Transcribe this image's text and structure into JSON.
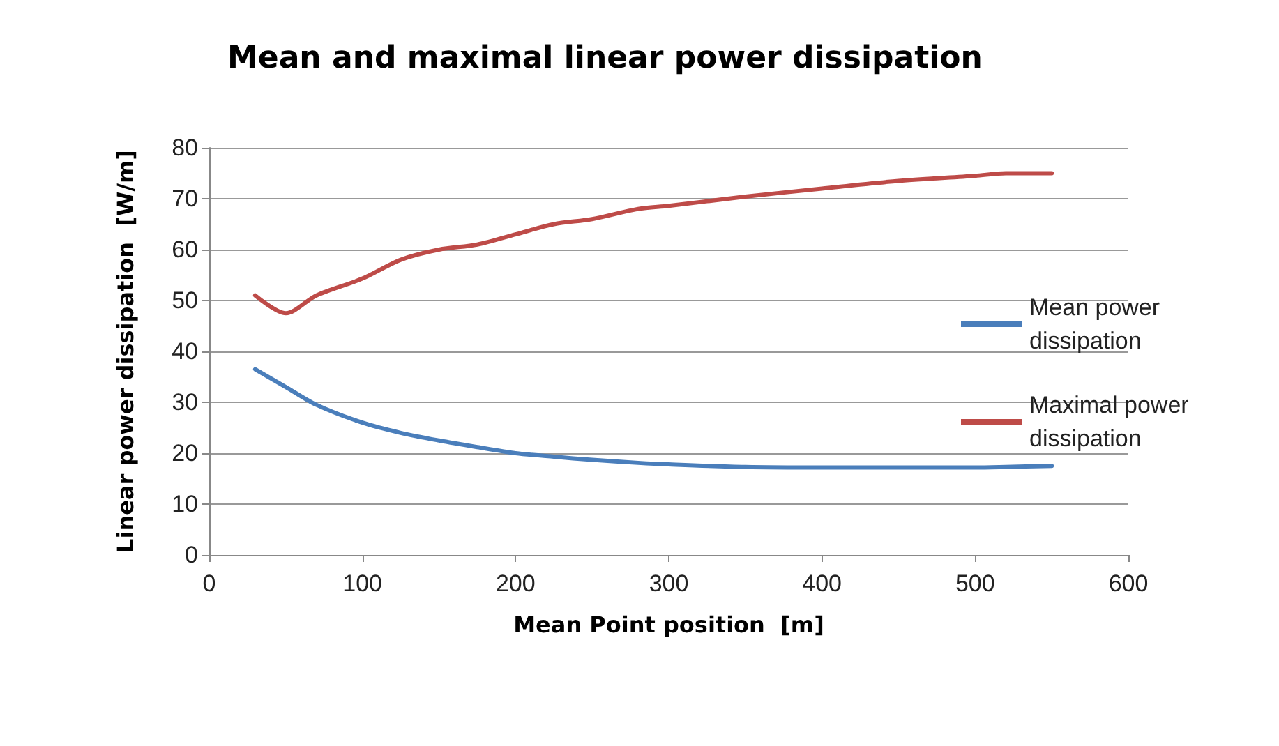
{
  "chart_data": {
    "type": "line",
    "title": "Mean and maximal linear power dissipation",
    "xlabel": "Mean Point position  [m]",
    "ylabel": "Linear power dissipation  [W/m]",
    "x": [
      30,
      50,
      70,
      100,
      125,
      150,
      175,
      200,
      225,
      250,
      280,
      300,
      350,
      400,
      450,
      500,
      520,
      550
    ],
    "series": [
      {
        "name": "Mean power dissipation",
        "color": "#4a7ebb",
        "values": [
          36.5,
          33,
          29.5,
          26,
          24,
          22.5,
          21.2,
          20,
          19.3,
          18.7,
          18.1,
          17.8,
          17.3,
          17.2,
          17.2,
          17.2,
          17.3,
          17.5
        ]
      },
      {
        "name": "Maximal power dissipation",
        "color": "#be4b48",
        "values": [
          51,
          47.5,
          51,
          54.3,
          58,
          60,
          61,
          63,
          65,
          66,
          68,
          68.6,
          70.4,
          72,
          73.5,
          74.5,
          75,
          75
        ]
      }
    ],
    "xlim": [
      0,
      600
    ],
    "xticks": [
      0,
      100,
      200,
      300,
      400,
      500,
      600
    ],
    "ylim": [
      0,
      80
    ],
    "yticks": [
      0,
      10,
      20,
      30,
      40,
      50,
      60,
      70,
      80
    ],
    "grid": "y",
    "legend": "right",
    "marker": "none",
    "line_style": "solid"
  }
}
